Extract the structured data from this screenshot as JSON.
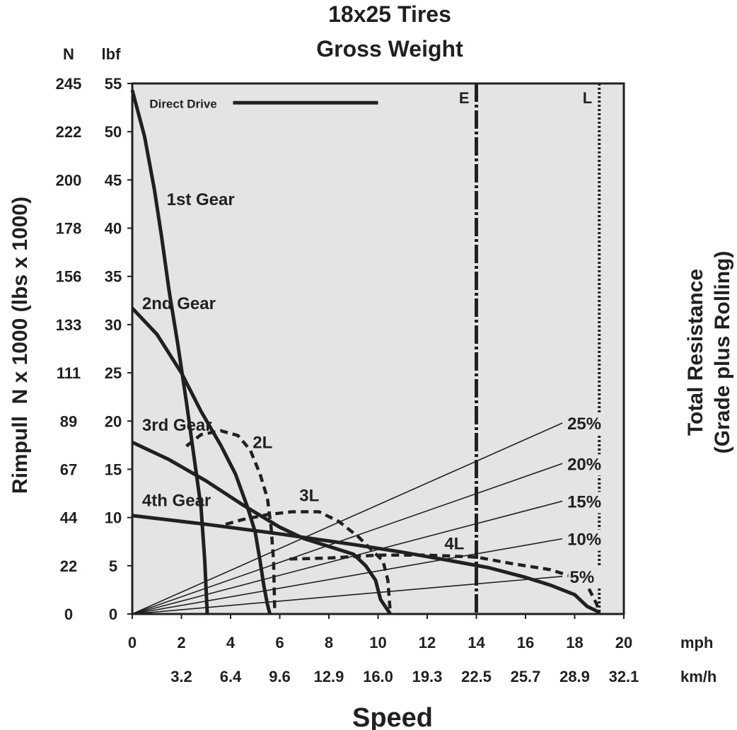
{
  "chart_data": {
    "type": "line",
    "title": "18x25 Tires",
    "subtitle": "Gross Weight",
    "xlabel": "Speed",
    "ylabel": "Rimpull  N x 1000 (lbs x 1000)",
    "y2label_line1": "Total Resistance",
    "y2label_line2": "(Grade plus Rolling)",
    "xlim": [
      0,
      20
    ],
    "ylim": [
      0,
      55
    ],
    "grid": false,
    "x_unit_primary": "mph",
    "x_unit_secondary": "km/h",
    "y_unit_primary": "lbf",
    "y_unit_secondary": "N",
    "x_ticks_mph": [
      "0",
      "2",
      "4",
      "6",
      "8",
      "10",
      "12",
      "14",
      "16",
      "18",
      "20"
    ],
    "x_ticks_kmh": [
      {
        "at": 2,
        "label": "3.2"
      },
      {
        "at": 4,
        "label": "6.4"
      },
      {
        "at": 6,
        "label": "9.6"
      },
      {
        "at": 8,
        "label": "12.9"
      },
      {
        "at": 10,
        "label": "16.0"
      },
      {
        "at": 12,
        "label": "19.3"
      },
      {
        "at": 14,
        "label": "22.5"
      },
      {
        "at": 16,
        "label": "25.7"
      },
      {
        "at": 18,
        "label": "28.9"
      },
      {
        "at": 20,
        "label": "32.1"
      }
    ],
    "y_ticks_lbf": [
      "0",
      "5",
      "10",
      "15",
      "20",
      "25",
      "30",
      "35",
      "40",
      "45",
      "50",
      "55"
    ],
    "y_ticks_n": [
      {
        "at": 0,
        "label": "0"
      },
      {
        "at": 5,
        "label": "22"
      },
      {
        "at": 10,
        "label": "44"
      },
      {
        "at": 15,
        "label": "67"
      },
      {
        "at": 20,
        "label": "89"
      },
      {
        "at": 25,
        "label": "111"
      },
      {
        "at": 30,
        "label": "133"
      },
      {
        "at": 35,
        "label": "156"
      },
      {
        "at": 40,
        "label": "178"
      },
      {
        "at": 45,
        "label": "200"
      },
      {
        "at": 50,
        "label": "222"
      },
      {
        "at": 55,
        "label": "245"
      }
    ],
    "series": [
      {
        "name": "1st Gear",
        "style": "solid",
        "label_pos": [
          1.4,
          42.4
        ],
        "points": [
          [
            0,
            54.3
          ],
          [
            0.5,
            49.5
          ],
          [
            0.9,
            44.0
          ],
          [
            1.2,
            39.0
          ],
          [
            1.5,
            33.5
          ],
          [
            1.85,
            28.0
          ],
          [
            2.2,
            22.0
          ],
          [
            2.5,
            16.5
          ],
          [
            2.8,
            11.0
          ],
          [
            2.95,
            5.5
          ],
          [
            3.05,
            0
          ]
        ]
      },
      {
        "name": "2nd Gear",
        "style": "solid",
        "label_pos": [
          0.4,
          31.6
        ],
        "points": [
          [
            0,
            31.7
          ],
          [
            1.0,
            29.0
          ],
          [
            2.0,
            25.0
          ],
          [
            2.8,
            21.0
          ],
          [
            3.6,
            17.5
          ],
          [
            4.2,
            14.5
          ],
          [
            4.7,
            11.0
          ],
          [
            5.0,
            8.5
          ],
          [
            5.2,
            5.5
          ],
          [
            5.35,
            3.0
          ],
          [
            5.5,
            1.0
          ],
          [
            5.6,
            0
          ]
        ]
      },
      {
        "name": "3rd Gear",
        "style": "solid",
        "label_pos": [
          0.4,
          19.0
        ],
        "points": [
          [
            0,
            17.8
          ],
          [
            1.5,
            16.0
          ],
          [
            3.0,
            13.8
          ],
          [
            4.5,
            11.3
          ],
          [
            6.0,
            9.0
          ],
          [
            7.0,
            7.8
          ],
          [
            8.0,
            7.0
          ],
          [
            9.0,
            6.2
          ],
          [
            9.5,
            5.0
          ],
          [
            9.9,
            3.5
          ],
          [
            10.1,
            1.5
          ],
          [
            10.5,
            0
          ]
        ]
      },
      {
        "name": "4th Gear",
        "style": "solid",
        "label_pos": [
          0.4,
          11.2
        ],
        "points": [
          [
            0,
            10.2
          ],
          [
            3.0,
            9.3
          ],
          [
            6.0,
            8.3
          ],
          [
            9.0,
            7.2
          ],
          [
            11.0,
            6.4
          ],
          [
            13.0,
            5.5
          ],
          [
            14.5,
            4.8
          ],
          [
            16.0,
            3.8
          ],
          [
            17.0,
            3.0
          ],
          [
            18.0,
            2.0
          ],
          [
            18.5,
            0.8
          ],
          [
            18.9,
            0.3
          ],
          [
            19.0,
            0
          ]
        ]
      },
      {
        "name": "2L",
        "style": "dashed",
        "label_pos": [
          4.9,
          17.2
        ],
        "points": [
          [
            2.2,
            17.4
          ],
          [
            2.8,
            18.6
          ],
          [
            3.6,
            19.0
          ],
          [
            4.3,
            18.5
          ],
          [
            4.8,
            17.0
          ],
          [
            5.2,
            14.5
          ],
          [
            5.5,
            12.0
          ],
          [
            5.65,
            9.0
          ],
          [
            5.75,
            5.5
          ],
          [
            5.8,
            0
          ]
        ]
      },
      {
        "name": "3L",
        "style": "dashed",
        "label_pos": [
          6.8,
          11.7
        ],
        "points": [
          [
            3.8,
            9.3
          ],
          [
            4.5,
            9.8
          ],
          [
            5.5,
            10.3
          ],
          [
            6.5,
            10.6
          ],
          [
            7.6,
            10.6
          ],
          [
            8.4,
            9.6
          ],
          [
            9.2,
            8.0
          ],
          [
            9.8,
            6.5
          ],
          [
            10.2,
            5.5
          ],
          [
            10.4,
            3.5
          ],
          [
            10.5,
            0
          ]
        ]
      },
      {
        "name": "4L",
        "style": "dashed",
        "label_pos": [
          12.7,
          6.7
        ],
        "points": [
          [
            6.4,
            5.7
          ],
          [
            8.0,
            5.8
          ],
          [
            10.0,
            6.1
          ],
          [
            12.0,
            6.1
          ],
          [
            14.0,
            5.9
          ],
          [
            15.5,
            5.2
          ],
          [
            17.0,
            4.6
          ],
          [
            18.0,
            3.8
          ],
          [
            18.6,
            2.5
          ],
          [
            18.9,
            1.0
          ],
          [
            19.0,
            0
          ]
        ]
      }
    ],
    "resistance_lines": [
      {
        "name": "25%",
        "end": [
          17.5,
          19.8
        ],
        "label_pos": [
          17.7,
          19.8
        ]
      },
      {
        "name": "20%",
        "end": [
          17.5,
          15.6
        ],
        "label_pos": [
          17.7,
          15.6
        ]
      },
      {
        "name": "15%",
        "end": [
          17.5,
          11.7
        ],
        "label_pos": [
          17.7,
          11.7
        ]
      },
      {
        "name": "10%",
        "end": [
          17.5,
          7.8
        ],
        "label_pos": [
          17.7,
          7.8
        ]
      },
      {
        "name": "5%",
        "end": [
          17.5,
          3.9
        ],
        "label_pos": [
          17.8,
          3.9
        ]
      }
    ],
    "vertical_markers": [
      {
        "name": "E",
        "x": 14.0,
        "style": "dash-dot"
      },
      {
        "name": "L",
        "x": 19.0,
        "style": "dotted"
      }
    ],
    "annotations": [
      {
        "name": "Direct Drive",
        "label_pos": [
          0.7,
          53.0
        ],
        "line_from": [
          4.1,
          53.0
        ],
        "line_to": [
          10.0,
          53.0
        ]
      }
    ]
  }
}
